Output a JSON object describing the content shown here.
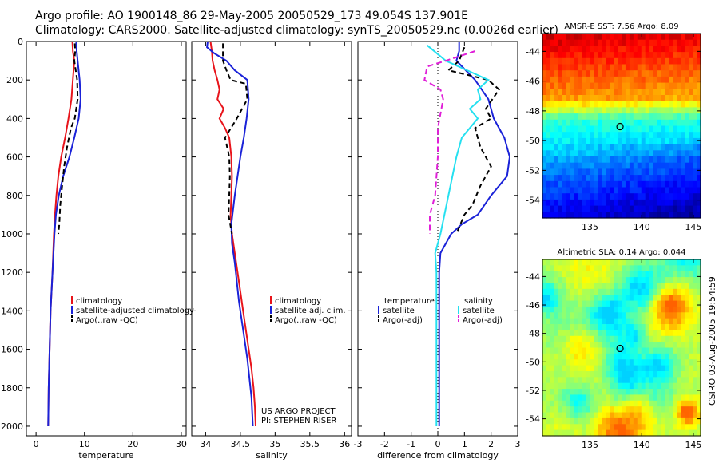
{
  "header": {
    "line1": "Argo profile: AO 1900148_86 29-May-2005 20050529_173 49.054S 137.901E",
    "line2": "Climatology: CARS2000. Satellite-adjusted climatology: synTS_20050529.nc (0.0026d earlier)"
  },
  "side_text": "CSIRO 03-Aug-2005 19:54:59",
  "colors": {
    "red": "#e8141b",
    "blue": "#1a22d8",
    "black": "#000000",
    "cyan": "#25e0f0",
    "magenta": "#e01fd8"
  },
  "chart_data": [
    {
      "id": "temperature",
      "type": "line",
      "xlabel": "temperature",
      "ylabel": "",
      "xlim": [
        -2,
        31
      ],
      "ylim": [
        2050,
        0
      ],
      "xticks": [
        0,
        10,
        20,
        30
      ],
      "yticks": [
        0,
        200,
        400,
        600,
        800,
        1000,
        1200,
        1400,
        1600,
        1800,
        2000
      ],
      "legend": {
        "placement": "lower-right",
        "labels": [
          "climatology",
          "satellite-adjusted climatology",
          "Argo(..raw -QC)"
        ]
      },
      "series": [
        {
          "name": "climatology",
          "color": "#e8141b",
          "dash": "solid",
          "points": [
            [
              7.5,
              0
            ],
            [
              7.6,
              50
            ],
            [
              7.9,
              100
            ],
            [
              7.6,
              200
            ],
            [
              7.3,
              300
            ],
            [
              6.7,
              400
            ],
            [
              6.0,
              500
            ],
            [
              5.2,
              600
            ],
            [
              4.6,
              700
            ],
            [
              4.2,
              800
            ],
            [
              3.9,
              900
            ],
            [
              3.7,
              1000
            ],
            [
              3.4,
              1200
            ],
            [
              3.0,
              1400
            ],
            [
              2.8,
              1600
            ],
            [
              2.6,
              1800
            ],
            [
              2.5,
              2000
            ]
          ]
        },
        {
          "name": "satellite-adjusted climatology",
          "color": "#1a22d8",
          "dash": "solid",
          "points": [
            [
              8.3,
              0
            ],
            [
              8.4,
              50
            ],
            [
              8.6,
              100
            ],
            [
              9.0,
              200
            ],
            [
              9.2,
              300
            ],
            [
              8.8,
              400
            ],
            [
              7.9,
              500
            ],
            [
              6.9,
              600
            ],
            [
              5.6,
              700
            ],
            [
              4.7,
              800
            ],
            [
              4.1,
              900
            ],
            [
              3.8,
              1000
            ],
            [
              3.4,
              1200
            ],
            [
              3.0,
              1400
            ],
            [
              2.8,
              1600
            ],
            [
              2.6,
              1800
            ],
            [
              2.5,
              2000
            ]
          ]
        },
        {
          "name": "Argo(..raw -QC)",
          "color": "#000000",
          "dash": "6,4",
          "points": [
            [
              8.0,
              10
            ],
            [
              8.1,
              50
            ],
            [
              7.9,
              100
            ],
            [
              8.2,
              150
            ],
            [
              8.5,
              200
            ],
            [
              8.6,
              300
            ],
            [
              8.0,
              400
            ],
            [
              7.2,
              450
            ],
            [
              6.4,
              550
            ],
            [
              5.8,
              650
            ],
            [
              5.4,
              750
            ],
            [
              5.0,
              850
            ],
            [
              4.8,
              950
            ],
            [
              4.6,
              1000
            ]
          ]
        }
      ]
    },
    {
      "id": "salinity",
      "type": "line",
      "xlabel": "salinity",
      "ylabel": "",
      "xlim": [
        33.8,
        36.1
      ],
      "ylim": [
        2050,
        0
      ],
      "xticks": [
        34,
        34.5,
        35,
        35.5,
        36
      ],
      "yticks": [
        0,
        200,
        400,
        600,
        800,
        1000,
        1200,
        1400,
        1600,
        1800,
        2000
      ],
      "legend": {
        "placement": "lower-right",
        "labels": [
          "climatology",
          "satellite adj. clim.",
          "Argo(..raw -QC)"
        ]
      },
      "annotations": [
        "US ARGO PROJECT",
        "PI: STEPHEN RISER"
      ],
      "series": [
        {
          "name": "climatology",
          "color": "#e8141b",
          "dash": "solid",
          "points": [
            [
              34.07,
              0
            ],
            [
              34.09,
              50
            ],
            [
              34.1,
              100
            ],
            [
              34.13,
              150
            ],
            [
              34.17,
              200
            ],
            [
              34.2,
              250
            ],
            [
              34.17,
              300
            ],
            [
              34.26,
              350
            ],
            [
              34.2,
              400
            ],
            [
              34.28,
              450
            ],
            [
              34.34,
              500
            ],
            [
              34.37,
              600
            ],
            [
              34.38,
              700
            ],
            [
              34.37,
              800
            ],
            [
              34.36,
              900
            ],
            [
              34.38,
              1000
            ],
            [
              34.42,
              1100
            ],
            [
              34.46,
              1200
            ],
            [
              34.5,
              1300
            ],
            [
              34.54,
              1400
            ],
            [
              34.58,
              1500
            ],
            [
              34.62,
              1600
            ],
            [
              34.66,
              1700
            ],
            [
              34.69,
              1800
            ],
            [
              34.71,
              1900
            ],
            [
              34.72,
              2000
            ]
          ]
        },
        {
          "name": "satellite adj. clim.",
          "color": "#1a22d8",
          "dash": "solid",
          "points": [
            [
              34.03,
              0
            ],
            [
              34.02,
              30
            ],
            [
              34.12,
              60
            ],
            [
              34.3,
              100
            ],
            [
              34.42,
              150
            ],
            [
              34.6,
              200
            ],
            [
              34.62,
              300
            ],
            [
              34.59,
              400
            ],
            [
              34.55,
              500
            ],
            [
              34.5,
              600
            ],
            [
              34.42,
              800
            ],
            [
              34.37,
              950
            ],
            [
              34.38,
              1050
            ],
            [
              34.42,
              1150
            ],
            [
              34.45,
              1250
            ],
            [
              34.48,
              1350
            ],
            [
              34.52,
              1450
            ],
            [
              34.56,
              1550
            ],
            [
              34.6,
              1650
            ],
            [
              34.63,
              1750
            ],
            [
              34.66,
              1850
            ],
            [
              34.68,
              2000
            ]
          ]
        },
        {
          "name": "Argo(..raw -QC)",
          "color": "#000000",
          "dash": "6,4",
          "points": [
            [
              34.25,
              10
            ],
            [
              34.25,
              100
            ],
            [
              34.3,
              150
            ],
            [
              34.36,
              200
            ],
            [
              34.58,
              220
            ],
            [
              34.6,
              300
            ],
            [
              34.45,
              400
            ],
            [
              34.28,
              500
            ],
            [
              34.34,
              600
            ],
            [
              34.35,
              700
            ],
            [
              34.34,
              800
            ],
            [
              34.33,
              900
            ],
            [
              34.38,
              1000
            ]
          ]
        }
      ]
    },
    {
      "id": "difference",
      "type": "line",
      "xlabel": "difference from climatology",
      "ylabel": "",
      "xlim": [
        -3,
        3
      ],
      "ylim": [
        2050,
        0
      ],
      "xticks": [
        -3,
        -2,
        -1,
        0,
        1,
        2,
        3
      ],
      "yticks": [
        0,
        200,
        400,
        600,
        800,
        1000,
        1200,
        1400,
        1600,
        1800,
        2000
      ],
      "legend_left": {
        "title": "temperature",
        "labels": [
          "satellite",
          "Argo(-adj)"
        ]
      },
      "legend_right": {
        "title": "salinity",
        "labels": [
          "satellite",
          "Argo(-adj)"
        ]
      },
      "series": [
        {
          "name": "satellite",
          "group": "temperature",
          "color": "#1a22d8",
          "dash": "solid",
          "points": [
            [
              0.8,
              0
            ],
            [
              0.8,
              50
            ],
            [
              0.7,
              100
            ],
            [
              1.4,
              200
            ],
            [
              1.9,
              300
            ],
            [
              2.1,
              400
            ],
            [
              2.5,
              500
            ],
            [
              2.7,
              600
            ],
            [
              2.6,
              700
            ],
            [
              2.0,
              800
            ],
            [
              1.5,
              900
            ],
            [
              0.9,
              950
            ],
            [
              0.5,
              1000
            ],
            [
              0.1,
              1100
            ],
            [
              0.05,
              1200
            ],
            [
              0.05,
              1500
            ],
            [
              0.05,
              2000
            ]
          ]
        },
        {
          "name": "Argo(-adj)",
          "group": "temperature",
          "color": "#000000",
          "dash": "6,4",
          "points": [
            [
              1.0,
              30
            ],
            [
              0.8,
              100
            ],
            [
              0.4,
              150
            ],
            [
              1.9,
              200
            ],
            [
              2.3,
              250
            ],
            [
              1.8,
              350
            ],
            [
              2.0,
              400
            ],
            [
              1.4,
              450
            ],
            [
              1.6,
              550
            ],
            [
              2.0,
              650
            ],
            [
              1.6,
              750
            ],
            [
              1.3,
              850
            ],
            [
              1.0,
              900
            ],
            [
              0.7,
              1000
            ]
          ]
        },
        {
          "name": "satellite",
          "group": "salinity",
          "color": "#25e0f0",
          "dash": "solid",
          "points": [
            [
              -0.4,
              20
            ],
            [
              0.3,
              100
            ],
            [
              1.1,
              150
            ],
            [
              1.9,
              200
            ],
            [
              1.5,
              250
            ],
            [
              1.6,
              300
            ],
            [
              1.2,
              350
            ],
            [
              1.5,
              400
            ],
            [
              0.9,
              500
            ],
            [
              0.7,
              600
            ],
            [
              0.4,
              800
            ],
            [
              0.1,
              1000
            ],
            [
              -0.1,
              1100
            ],
            [
              -0.05,
              1200
            ],
            [
              -0.05,
              1500
            ],
            [
              -0.05,
              2000
            ]
          ]
        },
        {
          "name": "Argo(-adj)",
          "group": "salinity",
          "color": "#e01fd8",
          "dash": "7,4",
          "points": [
            [
              1.4,
              50
            ],
            [
              0.3,
              100
            ],
            [
              -0.4,
              130
            ],
            [
              -0.5,
              200
            ],
            [
              0.1,
              250
            ],
            [
              0.2,
              300
            ],
            [
              0.0,
              450
            ],
            [
              0.0,
              600
            ],
            [
              -0.1,
              800
            ],
            [
              -0.3,
              900
            ],
            [
              -0.3,
              1000
            ]
          ]
        }
      ]
    },
    {
      "id": "sst-map",
      "type": "heatmap",
      "title": "AMSR-E SST: 7.56 Argo: 8.09",
      "xlim": [
        130.4,
        145.7
      ],
      "ylim": [
        -55.2,
        -42.8
      ],
      "xticks": [
        135,
        140,
        145
      ],
      "yticks": [
        -44,
        -46,
        -48,
        -50,
        -52,
        -54
      ],
      "marker": {
        "lon": 137.901,
        "lat": -49.054
      },
      "colorscale": "jet"
    },
    {
      "id": "sla-map",
      "type": "heatmap",
      "title": "Altimetric SLA: 0.14 Argo: 0.044",
      "xlim": [
        130.4,
        145.7
      ],
      "ylim": [
        -55.2,
        -42.8
      ],
      "xticks": [
        135,
        140,
        145
      ],
      "yticks": [
        -44,
        -46,
        -48,
        -50,
        -52,
        -54
      ],
      "marker": {
        "lon": 137.901,
        "lat": -49.054
      },
      "colorscale": "jet"
    }
  ]
}
